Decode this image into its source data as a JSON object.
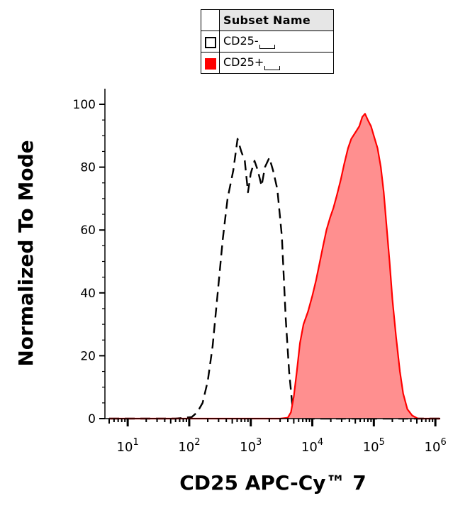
{
  "chart_data": {
    "type": "histogram",
    "xlabel": "CD25 APC-Cy™ 7",
    "ylabel": "Normalized To Mode",
    "x_scale": "log10",
    "xlim": [
      5,
      1200000
    ],
    "ylim": [
      0,
      100
    ],
    "x_ticks": [
      {
        "base": "10",
        "exp": "1",
        "value": 10
      },
      {
        "base": "10",
        "exp": "2",
        "value": 100
      },
      {
        "base": "10",
        "exp": "3",
        "value": 1000
      },
      {
        "base": "10",
        "exp": "4",
        "value": 10000
      },
      {
        "base": "10",
        "exp": "5",
        "value": 100000
      },
      {
        "base": "10",
        "exp": "6",
        "value": 1000000
      }
    ],
    "y_ticks": [
      "0",
      "20",
      "40",
      "60",
      "80",
      "100"
    ],
    "legend": {
      "header": "Subset Name",
      "entries": [
        {
          "label": "CD25-",
          "style": "open-box"
        },
        {
          "label": "CD25+",
          "style": "filled-red"
        }
      ]
    },
    "series": [
      {
        "name": "CD25-",
        "style": "dashed",
        "color": "#000000",
        "points": [
          [
            5,
            0
          ],
          [
            60,
            0
          ],
          [
            110,
            0.5
          ],
          [
            135,
            2
          ],
          [
            165,
            5
          ],
          [
            200,
            12
          ],
          [
            240,
            23
          ],
          [
            290,
            40
          ],
          [
            350,
            57
          ],
          [
            420,
            70
          ],
          [
            520,
            79
          ],
          [
            610,
            89
          ],
          [
            700,
            85
          ],
          [
            800,
            82
          ],
          [
            900,
            72
          ],
          [
            1000,
            78
          ],
          [
            1150,
            82
          ],
          [
            1300,
            79
          ],
          [
            1500,
            74
          ],
          [
            1700,
            80
          ],
          [
            2000,
            83
          ],
          [
            2300,
            79
          ],
          [
            2700,
            73
          ],
          [
            3200,
            58
          ],
          [
            3700,
            32
          ],
          [
            4200,
            15
          ],
          [
            4800,
            3
          ],
          [
            5500,
            0.5
          ],
          [
            7000,
            0
          ],
          [
            1200000,
            0
          ]
        ]
      },
      {
        "name": "CD25+",
        "style": "filled",
        "color": "#ff0000",
        "fill": "#ff8f8f",
        "points": [
          [
            5,
            0
          ],
          [
            3000,
            0
          ],
          [
            4000,
            0.3
          ],
          [
            4500,
            2
          ],
          [
            5000,
            7
          ],
          [
            5600,
            15
          ],
          [
            6300,
            24
          ],
          [
            7200,
            30
          ],
          [
            8500,
            34
          ],
          [
            10000,
            39
          ],
          [
            11500,
            44
          ],
          [
            13000,
            49
          ],
          [
            15000,
            55
          ],
          [
            17000,
            60
          ],
          [
            19500,
            64
          ],
          [
            22000,
            67
          ],
          [
            25000,
            71
          ],
          [
            29000,
            76
          ],
          [
            33000,
            81
          ],
          [
            38000,
            86
          ],
          [
            43000,
            89
          ],
          [
            50000,
            91
          ],
          [
            58000,
            93
          ],
          [
            65000,
            96
          ],
          [
            72000,
            97
          ],
          [
            80000,
            95
          ],
          [
            90000,
            93
          ],
          [
            100000,
            90
          ],
          [
            115000,
            86
          ],
          [
            130000,
            80
          ],
          [
            145000,
            72
          ],
          [
            160000,
            62
          ],
          [
            180000,
            50
          ],
          [
            200000,
            38
          ],
          [
            230000,
            26
          ],
          [
            265000,
            15
          ],
          [
            300000,
            8
          ],
          [
            350000,
            3
          ],
          [
            420000,
            1
          ],
          [
            520000,
            0
          ],
          [
            1200000,
            0
          ]
        ]
      }
    ]
  }
}
